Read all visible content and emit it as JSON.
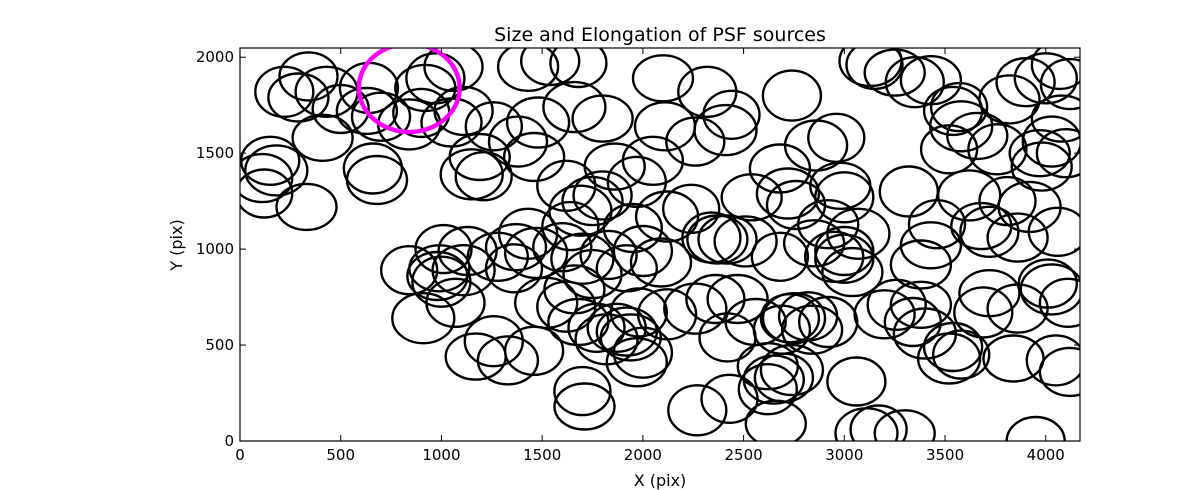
{
  "chart_data": {
    "type": "scatter",
    "marker": "ellipse",
    "title": "Size and Elongation of PSF sources",
    "xlabel": "X (pix)",
    "ylabel": "Y (pix)",
    "xlim": [
      0,
      4170
    ],
    "ylim": [
      0,
      2048
    ],
    "xticks": [
      0,
      500,
      1000,
      1500,
      2000,
      2500,
      3000,
      3500,
      4000
    ],
    "yticks": [
      0,
      500,
      1000,
      1500,
      2000
    ],
    "colors": {
      "sources": "#000000",
      "highlight": "#ff00ff"
    },
    "highlight": {
      "x": 840,
      "y": 1840,
      "rx": 250,
      "ry": 230
    },
    "sources": [
      [
        110,
        1370
      ],
      [
        150,
        1460
      ],
      [
        180,
        1410
      ],
      [
        120,
        1290
      ],
      [
        330,
        1220
      ],
      [
        220,
        1820
      ],
      [
        290,
        1790
      ],
      [
        340,
        1900
      ],
      [
        430,
        1820
      ],
      [
        500,
        1730
      ],
      [
        410,
        1580
      ],
      [
        660,
        1420
      ],
      [
        680,
        1360
      ],
      [
        700,
        1690
      ],
      [
        840,
        1650
      ],
      [
        900,
        1710
      ],
      [
        920,
        1840
      ],
      [
        970,
        1890
      ],
      [
        1050,
        1660
      ],
      [
        1110,
        1720
      ],
      [
        1150,
        1390
      ],
      [
        1210,
        1380
      ],
      [
        1190,
        1480
      ],
      [
        1380,
        1560
      ],
      [
        1460,
        1480
      ],
      [
        1540,
        1980
      ],
      [
        1660,
        1740
      ],
      [
        1680,
        1970
      ],
      [
        1800,
        1680
      ],
      [
        1620,
        1330
      ],
      [
        1750,
        1250
      ],
      [
        1800,
        1280
      ],
      [
        1690,
        1200
      ],
      [
        1640,
        1120
      ],
      [
        1860,
        1430
      ],
      [
        1970,
        1350
      ],
      [
        2050,
        1460
      ],
      [
        1950,
        1110
      ],
      [
        2120,
        1170
      ],
      [
        2240,
        1210
      ],
      [
        2100,
        1890
      ],
      [
        2320,
        1820
      ],
      [
        2110,
        1640
      ],
      [
        2260,
        1560
      ],
      [
        2410,
        1620
      ],
      [
        2440,
        1700
      ],
      [
        2540,
        1270
      ],
      [
        2740,
        1800
      ],
      [
        2680,
        1420
      ],
      [
        2760,
        1230
      ],
      [
        2860,
        1540
      ],
      [
        2960,
        1580
      ],
      [
        2980,
        1330
      ],
      [
        3000,
        1270
      ],
      [
        2920,
        1130
      ],
      [
        3000,
        950
      ],
      [
        3070,
        1080
      ],
      [
        3150,
        1960
      ],
      [
        3250,
        1920
      ],
      [
        3350,
        1870
      ],
      [
        3430,
        1880
      ],
      [
        3540,
        1720
      ],
      [
        3580,
        1640
      ],
      [
        3520,
        1520
      ],
      [
        3660,
        1590
      ],
      [
        3760,
        1520
      ],
      [
        3820,
        1780
      ],
      [
        3900,
        1870
      ],
      [
        4000,
        1890
      ],
      [
        4070,
        1960
      ],
      [
        4080,
        1680
      ],
      [
        4030,
        1560
      ],
      [
        3980,
        1430
      ],
      [
        4100,
        1500
      ],
      [
        3920,
        1220
      ],
      [
        3810,
        1250
      ],
      [
        3680,
        1120
      ],
      [
        3720,
        1090
      ],
      [
        3860,
        1060
      ],
      [
        4060,
        1090
      ],
      [
        3620,
        1280
      ],
      [
        3460,
        1130
      ],
      [
        3430,
        1020
      ],
      [
        3320,
        1300
      ],
      [
        3380,
        920
      ],
      [
        4010,
        820
      ],
      [
        4030,
        790
      ],
      [
        4110,
        720
      ],
      [
        3720,
        770
      ],
      [
        3690,
        670
      ],
      [
        3860,
        690
      ],
      [
        3540,
        490
      ],
      [
        3520,
        430
      ],
      [
        3580,
        450
      ],
      [
        3840,
        430
      ],
      [
        4050,
        420
      ],
      [
        4120,
        360
      ],
      [
        3950,
        0
      ],
      [
        3400,
        560
      ],
      [
        3340,
        620
      ],
      [
        3380,
        710
      ],
      [
        3260,
        710
      ],
      [
        3200,
        660
      ],
      [
        3060,
        310
      ],
      [
        3110,
        40
      ],
      [
        3170,
        60
      ],
      [
        3300,
        40
      ],
      [
        2920,
        620
      ],
      [
        2840,
        580
      ],
      [
        2820,
        650
      ],
      [
        2750,
        640
      ],
      [
        2690,
        580
      ],
      [
        2620,
        390
      ],
      [
        2620,
        270
      ],
      [
        2650,
        320
      ],
      [
        2700,
        330
      ],
      [
        2740,
        370
      ],
      [
        2430,
        220
      ],
      [
        2660,
        90
      ],
      [
        2270,
        160
      ],
      [
        2470,
        740
      ],
      [
        2360,
        740
      ],
      [
        2260,
        690
      ],
      [
        2420,
        540
      ],
      [
        2560,
        620
      ],
      [
        2340,
        1060
      ],
      [
        2370,
        1050
      ],
      [
        2420,
        1050
      ],
      [
        2510,
        1040
      ],
      [
        2680,
        960
      ],
      [
        2850,
        1030
      ],
      [
        2950,
        960
      ],
      [
        3040,
        880
      ],
      [
        3000,
        990
      ],
      [
        2720,
        1290
      ],
      [
        1980,
        670
      ],
      [
        1940,
        540
      ],
      [
        2000,
        460
      ],
      [
        1920,
        570
      ],
      [
        1870,
        590
      ],
      [
        1820,
        530
      ],
      [
        1770,
        590
      ],
      [
        1680,
        620
      ],
      [
        1620,
        700
      ],
      [
        1660,
        790
      ],
      [
        1750,
        870
      ],
      [
        1700,
        950
      ],
      [
        1830,
        970
      ],
      [
        1920,
        900
      ],
      [
        2000,
        990
      ],
      [
        2090,
        930
      ],
      [
        1600,
        1010
      ],
      [
        1470,
        980
      ],
      [
        1360,
        900
      ],
      [
        1370,
        1010
      ],
      [
        1430,
        1080
      ],
      [
        1280,
        960
      ],
      [
        1130,
        990
      ],
      [
        1110,
        890
      ],
      [
        1010,
        1000
      ],
      [
        990,
        900
      ],
      [
        1000,
        830
      ],
      [
        980,
        860
      ],
      [
        1070,
        720
      ],
      [
        910,
        640
      ],
      [
        840,
        890
      ],
      [
        1170,
        440
      ],
      [
        1260,
        520
      ],
      [
        1330,
        420
      ],
      [
        1460,
        470
      ],
      [
        1520,
        720
      ],
      [
        1700,
        260
      ],
      [
        1710,
        180
      ],
      [
        2120,
        660
      ],
      [
        1430,
        1950
      ],
      [
        1060,
        1950
      ],
      [
        1480,
        1660
      ],
      [
        1260,
        1640
      ],
      [
        630,
        1720
      ],
      [
        640,
        1840
      ],
      [
        1970,
        410
      ],
      [
        2730,
        640
      ],
      [
        3130,
        1980
      ],
      [
        3570,
        1740
      ],
      [
        3970,
        1500
      ],
      [
        4120,
        1860
      ]
    ]
  }
}
